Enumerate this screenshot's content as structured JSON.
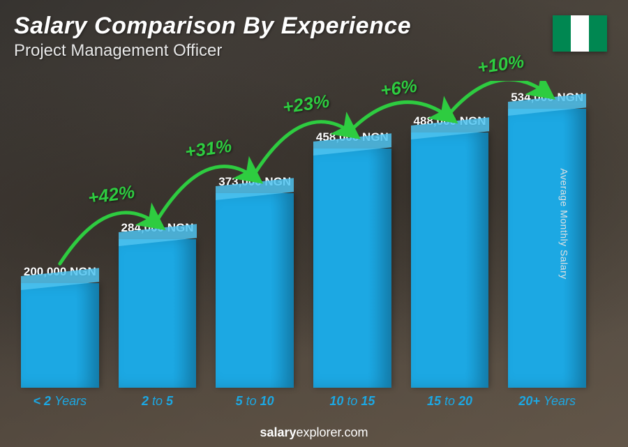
{
  "header": {
    "title": "Salary Comparison By Experience",
    "subtitle": "Project Management Officer"
  },
  "flag": {
    "stripes": [
      "#008751",
      "#ffffff",
      "#008751"
    ]
  },
  "chart": {
    "type": "bar",
    "y_axis_label": "Average Monthly Salary",
    "bar_color": "#1ca8e3",
    "bar_top_color": "#4fc3f0",
    "x_label_color": "#1ca8e3",
    "value_label_color": "#ffffff",
    "arrow_color": "#2ecc40",
    "max_value": 534000,
    "max_bar_height": 400,
    "bars": [
      {
        "category_html": "&lt; 2 <span class='thin'>Years</span>",
        "value": 200000,
        "label": "200,000 NGN"
      },
      {
        "category_html": "2 <span class='thin'>to</span> 5",
        "value": 284000,
        "label": "284,000 NGN"
      },
      {
        "category_html": "5 <span class='thin'>to</span> 10",
        "value": 373000,
        "label": "373,000 NGN"
      },
      {
        "category_html": "10 <span class='thin'>to</span> 15",
        "value": 458000,
        "label": "458,000 NGN"
      },
      {
        "category_html": "15 <span class='thin'>to</span> 20",
        "value": 488000,
        "label": "488,000 NGN"
      },
      {
        "category_html": "20+ <span class='thin'>Years</span>",
        "value": 534000,
        "label": "534,000 NGN"
      }
    ],
    "increases": [
      {
        "from": 0,
        "to": 1,
        "pct": "+42%"
      },
      {
        "from": 1,
        "to": 2,
        "pct": "+31%"
      },
      {
        "from": 2,
        "to": 3,
        "pct": "+23%"
      },
      {
        "from": 3,
        "to": 4,
        "pct": "+6%"
      },
      {
        "from": 4,
        "to": 5,
        "pct": "+10%"
      }
    ]
  },
  "footer": {
    "brand_bold": "salary",
    "brand_rest": "explorer.com"
  }
}
